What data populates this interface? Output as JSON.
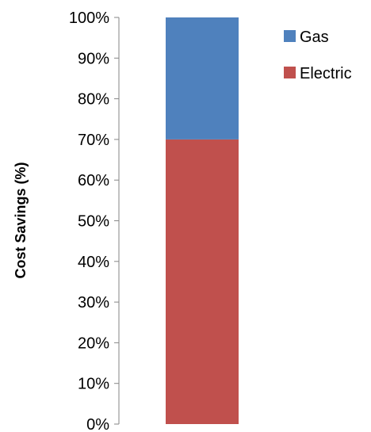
{
  "chart_data": {
    "type": "bar",
    "stacked": true,
    "categories": [
      ""
    ],
    "series": [
      {
        "name": "Electric",
        "values": [
          70
        ],
        "color": "#C0504D"
      },
      {
        "name": "Gas",
        "values": [
          30
        ],
        "color": "#4F81BD"
      }
    ],
    "xlabel": "",
    "ylabel": "Cost Savings (%)",
    "ylim": [
      0,
      100
    ],
    "y_ticks": [
      "0%",
      "10%",
      "20%",
      "30%",
      "40%",
      "50%",
      "60%",
      "70%",
      "80%",
      "90%",
      "100%"
    ],
    "grid": false,
    "legend_position": "right"
  }
}
